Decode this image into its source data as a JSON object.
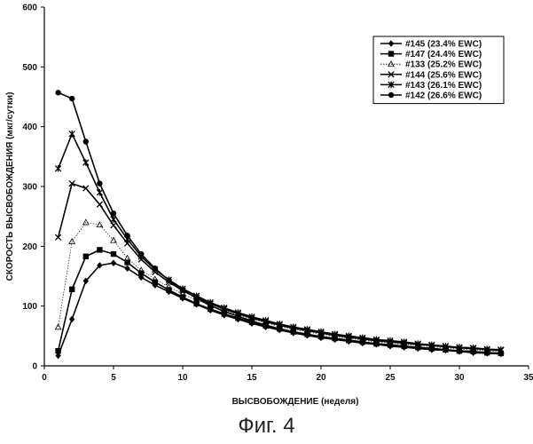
{
  "caption": "Фиг. 4",
  "chart_data": {
    "type": "line",
    "title": "",
    "xlabel": "ВЫСВОБОЖДЕНИЕ (неделя)",
    "ylabel": "СКОРОСТЬ ВЫСВОБОЖДЕНИЯ (мкг/сутки)",
    "xlim": [
      0,
      35
    ],
    "ylim": [
      0,
      600
    ],
    "xticks": [
      0,
      5,
      10,
      15,
      20,
      25,
      30,
      35
    ],
    "yticks": [
      0,
      100,
      200,
      300,
      400,
      500,
      600
    ],
    "grid": false,
    "legend_position": "top-right",
    "x": [
      1,
      2,
      3,
      4,
      5,
      6,
      7,
      8,
      9,
      10,
      11,
      12,
      13,
      14,
      15,
      16,
      17,
      18,
      19,
      20,
      21,
      22,
      23,
      24,
      25,
      26,
      27,
      28,
      29,
      30,
      31,
      32,
      33
    ],
    "series": [
      {
        "name": "#145 (23.4% EWC)",
        "marker": "diamond",
        "line": "solid",
        "values": [
          17,
          78,
          142,
          168,
          172,
          163,
          148,
          135,
          124,
          113,
          103,
          93,
          85,
          78,
          71,
          65,
          60,
          55,
          51,
          47,
          44,
          41,
          38,
          36,
          33,
          31,
          29,
          27,
          26,
          24,
          22,
          21,
          20
        ]
      },
      {
        "name": "#147 (24.4% EWC)",
        "marker": "square",
        "line": "solid",
        "values": [
          25,
          128,
          183,
          194,
          187,
          173,
          155,
          140,
          127,
          115,
          104,
          95,
          87,
          80,
          73,
          67,
          62,
          57,
          53,
          49,
          46,
          43,
          40,
          37,
          35,
          33,
          31,
          29,
          27,
          25,
          24,
          22,
          21
        ]
      },
      {
        "name": "#133 (25.2% EWC)",
        "marker": "triangle",
        "line": "dotted",
        "values": [
          65,
          208,
          240,
          236,
          210,
          180,
          160,
          145,
          132,
          120,
          110,
          101,
          93,
          85,
          78,
          72,
          66,
          61,
          57,
          53,
          49,
          46,
          43,
          40,
          38,
          36,
          34,
          32,
          30,
          28,
          27,
          25,
          24
        ]
      },
      {
        "name": "#144 (25.6% EWC)",
        "marker": "x",
        "line": "solid",
        "values": [
          215,
          305,
          297,
          270,
          235,
          205,
          178,
          157,
          140,
          126,
          114,
          104,
          95,
          87,
          80,
          74,
          68,
          63,
          59,
          55,
          51,
          48,
          45,
          42,
          40,
          38,
          36,
          34,
          32,
          30,
          29,
          27,
          26
        ]
      },
      {
        "name": "#143 (26.1% EWC)",
        "marker": "star",
        "line": "solid",
        "values": [
          330,
          388,
          340,
          290,
          245,
          212,
          183,
          161,
          144,
          129,
          117,
          106,
          97,
          89,
          82,
          76,
          70,
          65,
          61,
          57,
          53,
          50,
          47,
          44,
          42,
          40,
          37,
          35,
          33,
          31,
          30,
          28,
          27
        ]
      },
      {
        "name": "#142 (26.6% EWC)",
        "marker": "circle",
        "line": "solid",
        "values": [
          457,
          447,
          375,
          305,
          255,
          218,
          187,
          163,
          143,
          127,
          113,
          101,
          91,
          83,
          75,
          68,
          62,
          57,
          52,
          48,
          45,
          42,
          39,
          37,
          35,
          33,
          31,
          29,
          27,
          25,
          24,
          22,
          21
        ]
      }
    ]
  }
}
